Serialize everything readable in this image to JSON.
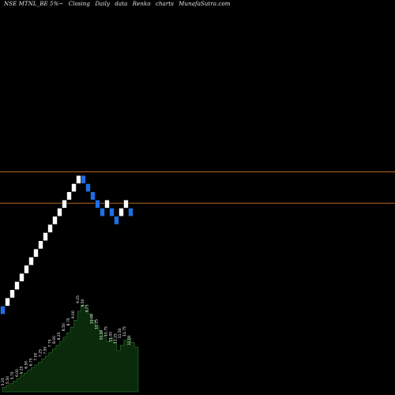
{
  "header": {
    "symbol": "NSE MTNL_BE 5%~",
    "closing": "Closing",
    "period": "Daily",
    "data_label": "data",
    "chart_kind": "Renko",
    "charts_label": "charts",
    "brand": "MunafaSutra.com"
  },
  "colors": {
    "background": "#000000",
    "up_brick": "#ffffff",
    "down_brick": "#1e6fe6",
    "level_line": "#b5651d",
    "volume_fill": "#0b2a0b",
    "volume_edge": "#2a8a2a"
  },
  "chart_data": {
    "type": "renko",
    "price_levels": [
      71.35,
      67.5
    ],
    "price_range": [
      44,
      92.4
    ],
    "bricks": [
      {
        "dir": "down",
        "level": 54.4
      },
      {
        "dir": "up",
        "level": 55.4
      },
      {
        "dir": "up",
        "level": 56.4
      },
      {
        "dir": "up",
        "level": 57.4
      },
      {
        "dir": "up",
        "level": 58.4
      },
      {
        "dir": "up",
        "level": 59.4
      },
      {
        "dir": "up",
        "level": 60.4
      },
      {
        "dir": "up",
        "level": 61.4
      },
      {
        "dir": "up",
        "level": 62.4
      },
      {
        "dir": "up",
        "level": 63.4
      },
      {
        "dir": "up",
        "level": 64.4
      },
      {
        "dir": "up",
        "level": 65.4
      },
      {
        "dir": "up",
        "level": 66.4
      },
      {
        "dir": "up",
        "level": 67.4
      },
      {
        "dir": "up",
        "level": 68.4
      },
      {
        "dir": "up",
        "level": 69.4
      },
      {
        "dir": "up",
        "level": 70.4
      },
      {
        "dir": "down",
        "level": 70.4
      },
      {
        "dir": "down",
        "level": 69.4
      },
      {
        "dir": "down",
        "level": 68.4
      },
      {
        "dir": "down",
        "level": 67.4
      },
      {
        "dir": "down",
        "level": 66.4
      },
      {
        "dir": "up",
        "level": 67.4
      },
      {
        "dir": "down",
        "level": 66.4
      },
      {
        "dir": "down",
        "level": 65.4
      },
      {
        "dir": "up",
        "level": 66.4
      },
      {
        "dir": "up",
        "level": 67.4
      },
      {
        "dir": "down",
        "level": 66.4
      }
    ],
    "volume_labels": [
      "5.25",
      "5.50",
      "5.75",
      "6.00",
      "6.25",
      "6.50",
      "6.75",
      "7.00",
      "7.25",
      "7.50",
      "7.75",
      "8.00",
      "8.25",
      "8.50",
      "8.75",
      "9.00",
      "9.25",
      "9.50",
      "9.75",
      "10.00",
      "10.25",
      "10.50",
      "10.75",
      "11.00",
      "11.25",
      "11.50",
      "11.75",
      "12.00"
    ],
    "volume_values": [
      5,
      7,
      9,
      12,
      15,
      18,
      21,
      24,
      27,
      30,
      33,
      37,
      40,
      44,
      48,
      52,
      56,
      61,
      66,
      72,
      80,
      90,
      97,
      93,
      87,
      80,
      74,
      68,
      62,
      56,
      60,
      54,
      46,
      52,
      58,
      60,
      55,
      50
    ]
  }
}
